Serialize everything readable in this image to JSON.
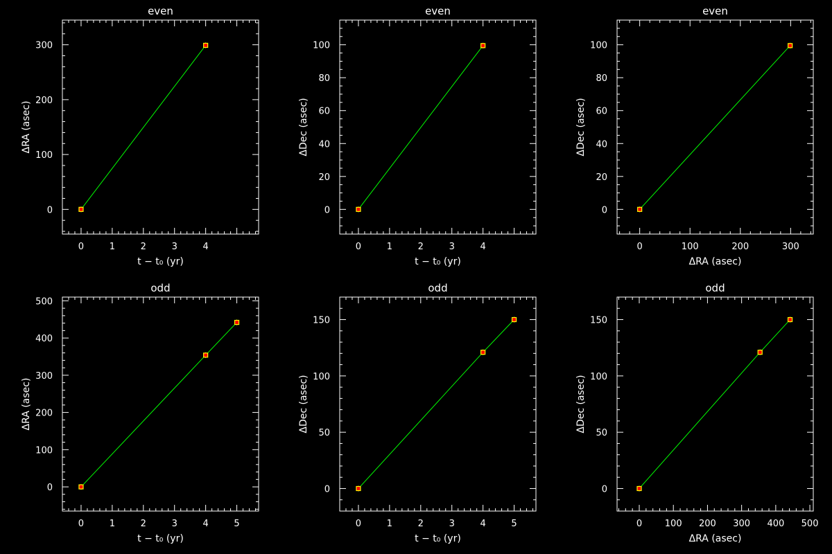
{
  "colors": {
    "background": "#000000",
    "axes": "#ffffff",
    "fit_line": "#00ff00",
    "point_fill": "#ff0000",
    "point_edge": "#ffff00"
  },
  "chart_data": [
    {
      "type": "line",
      "title": "even",
      "xlabel": "t − t₀ (yr)",
      "ylabel": "ΔRA (asec)",
      "xlim": [
        -0.6,
        5.7
      ],
      "ylim": [
        -45,
        345
      ],
      "xticks": [
        0,
        1,
        2,
        3,
        4
      ],
      "yticks": [
        0,
        100,
        200,
        300
      ],
      "series": [
        {
          "x": [
            0,
            4
          ],
          "y": [
            0,
            299
          ]
        }
      ]
    },
    {
      "type": "line",
      "title": "even",
      "xlabel": "t − t₀ (yr)",
      "ylabel": "ΔDec (asec)",
      "xlim": [
        -0.6,
        5.7
      ],
      "ylim": [
        -15,
        115
      ],
      "xticks": [
        0,
        1,
        2,
        3,
        4
      ],
      "yticks": [
        0,
        20,
        40,
        60,
        80,
        100
      ],
      "series": [
        {
          "x": [
            0,
            4
          ],
          "y": [
            0,
            99.5
          ]
        }
      ]
    },
    {
      "type": "line",
      "title": "even",
      "xlabel": "ΔRA (asec)",
      "ylabel": "ΔDec (asec)",
      "xlim": [
        -45,
        345
      ],
      "ylim": [
        -15,
        115
      ],
      "xticks": [
        0,
        100,
        200,
        300
      ],
      "yticks": [
        0,
        20,
        40,
        60,
        80,
        100
      ],
      "series": [
        {
          "x": [
            0,
            299
          ],
          "y": [
            0,
            99.5
          ]
        }
      ]
    },
    {
      "type": "line",
      "title": "odd",
      "xlabel": "t − t₀ (yr)",
      "ylabel": "ΔRA (asec)",
      "xlim": [
        -0.6,
        5.7
      ],
      "ylim": [
        -65,
        510
      ],
      "xticks": [
        0,
        1,
        2,
        3,
        4,
        5
      ],
      "yticks": [
        0,
        100,
        200,
        300,
        400,
        500
      ],
      "series": [
        {
          "x": [
            0,
            4,
            5
          ],
          "y": [
            0,
            354,
            442
          ]
        }
      ]
    },
    {
      "type": "line",
      "title": "odd",
      "xlabel": "t − t₀ (yr)",
      "ylabel": "ΔDec (asec)",
      "xlim": [
        -0.6,
        5.7
      ],
      "ylim": [
        -20,
        170
      ],
      "xticks": [
        0,
        1,
        2,
        3,
        4,
        5
      ],
      "yticks": [
        0,
        50,
        100,
        150
      ],
      "series": [
        {
          "x": [
            0,
            4,
            5
          ],
          "y": [
            0,
            121,
            150
          ]
        }
      ]
    },
    {
      "type": "line",
      "title": "odd",
      "xlabel": "ΔRA (asec)",
      "ylabel": "ΔDec (asec)",
      "xlim": [
        -65,
        510
      ],
      "ylim": [
        -20,
        170
      ],
      "xticks": [
        0,
        100,
        200,
        300,
        400,
        500
      ],
      "yticks": [
        0,
        50,
        100,
        150
      ],
      "series": [
        {
          "x": [
            0,
            354,
            442
          ],
          "y": [
            0,
            121,
            150
          ]
        }
      ]
    }
  ]
}
